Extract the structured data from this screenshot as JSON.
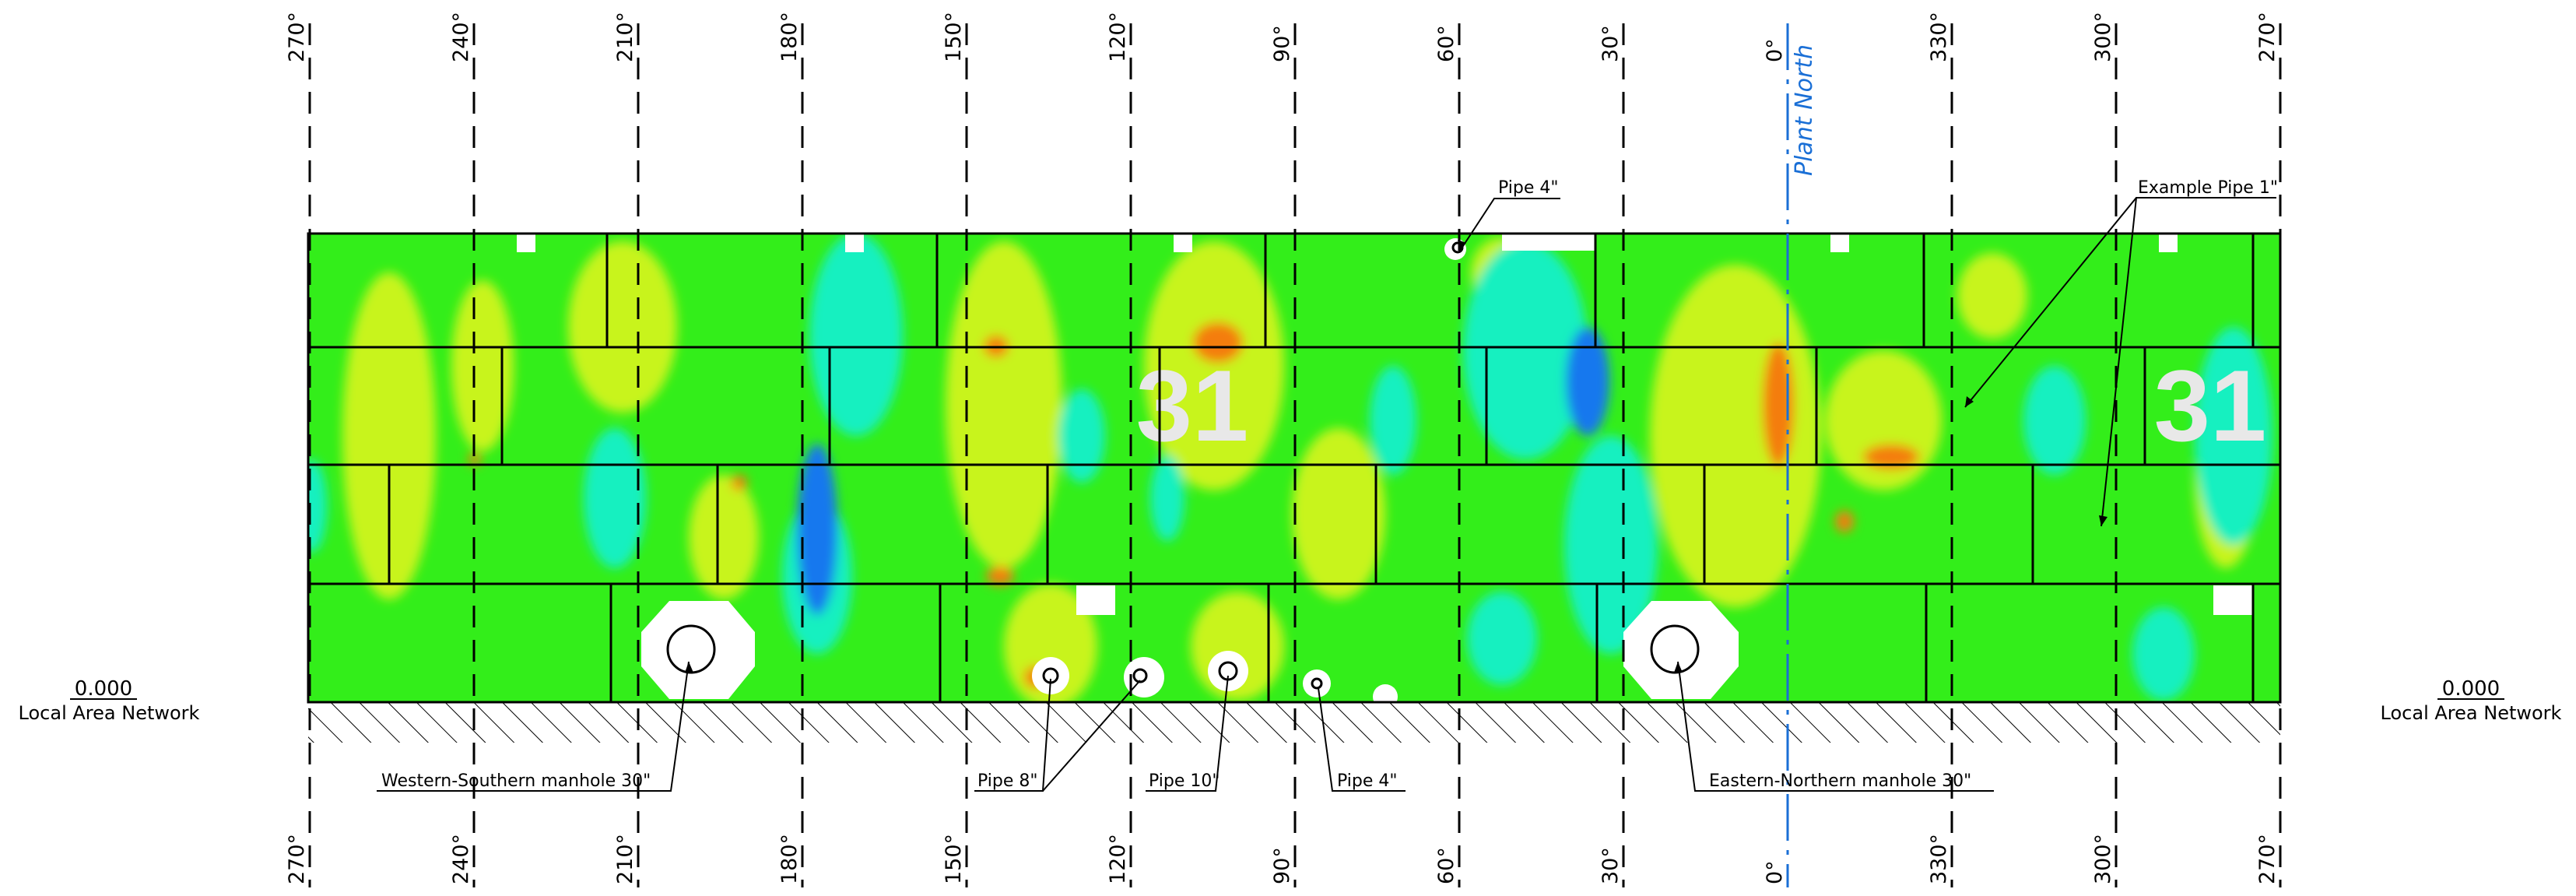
{
  "drawing": {
    "angle_labels_top": [
      "270°",
      "240°",
      "210°",
      "180°",
      "150°",
      "120°",
      "90°",
      "60°",
      "30°",
      "0°",
      "330°",
      "300°",
      "270°"
    ],
    "angle_labels_bottom": [
      "270°",
      "240°",
      "210°",
      "180°",
      "150°",
      "120°",
      "90°",
      "60°",
      "30°",
      "0°",
      "330°",
      "300°",
      "270°"
    ],
    "plant_north_label": "Plant North",
    "elevation_left": {
      "value": "0.000",
      "label": "Local Area Network"
    },
    "elevation_right": {
      "value": "0.000",
      "label": "Local Area Network"
    },
    "tank_markings": [
      "31",
      "31"
    ],
    "callouts": {
      "pipe_4_top": "Pipe 4\"",
      "example_pipe": "Example Pipe 1\"",
      "western_manhole": "Western-Southern manhole 30\"",
      "pipe_8": "Pipe 8\"",
      "pipe_10": "Pipe 10\"",
      "pipe_4_bottom": "Pipe 4\"",
      "eastern_manhole": "Eastern-Northern manhole 30\""
    }
  },
  "colors": {
    "green": "#33ee1a",
    "yellow_green": "#c8f41e",
    "cyan": "#12f0c0",
    "blue": "#1278ee",
    "orange": "#f47d0f",
    "north_line": "#1a6fd6"
  }
}
